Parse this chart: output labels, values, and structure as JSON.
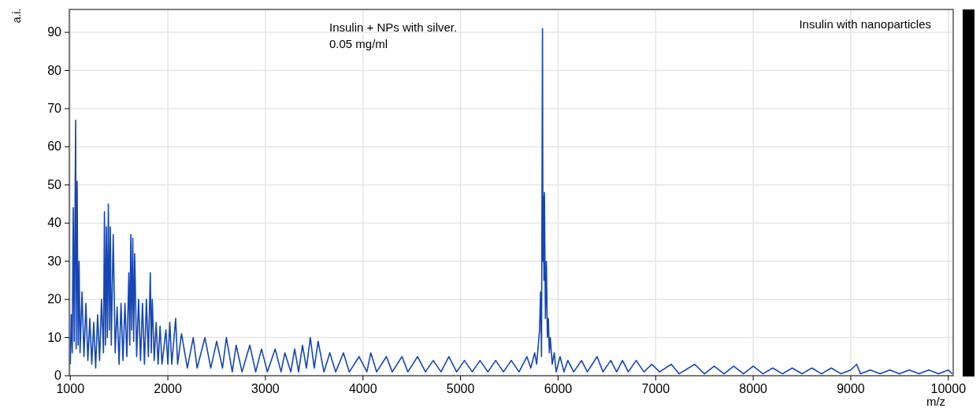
{
  "chart_data": {
    "type": "line",
    "xlabel": "m/z",
    "ylabel": "a.i.",
    "annotations": [
      "Insulin + NPs with silver.\n0.05 mg/ml",
      "Insulin with nanoparticles"
    ],
    "xlim": [
      990,
      10050
    ],
    "xticks": [
      1000,
      2000,
      3000,
      4000,
      5000,
      6000,
      7000,
      8000,
      9000,
      10000
    ],
    "ylim": [
      0,
      96
    ],
    "yticks": [
      0,
      10,
      20,
      30,
      40,
      50,
      60,
      70,
      80,
      90
    ],
    "grid": true,
    "series": [
      {
        "color": "#1446b4",
        "x": [
          1000,
          1010,
          1020,
          1030,
          1040,
          1050,
          1055,
          1060,
          1070,
          1080,
          1090,
          1100,
          1120,
          1140,
          1160,
          1180,
          1200,
          1220,
          1240,
          1260,
          1280,
          1300,
          1320,
          1340,
          1350,
          1360,
          1370,
          1380,
          1390,
          1400,
          1410,
          1420,
          1440,
          1460,
          1480,
          1500,
          1520,
          1540,
          1560,
          1580,
          1600,
          1610,
          1620,
          1630,
          1640,
          1650,
          1660,
          1680,
          1700,
          1720,
          1740,
          1760,
          1780,
          1800,
          1820,
          1830,
          1840,
          1860,
          1880,
          1900,
          1920,
          1940,
          1980,
          2000,
          2020,
          2040,
          2080,
          2100,
          2140,
          2200,
          2260,
          2300,
          2380,
          2440,
          2500,
          2560,
          2600,
          2660,
          2700,
          2760,
          2840,
          2900,
          2960,
          3020,
          3100,
          3160,
          3200,
          3260,
          3300,
          3340,
          3380,
          3420,
          3460,
          3500,
          3540,
          3600,
          3660,
          3720,
          3800,
          3860,
          3960,
          4040,
          4080,
          4140,
          4240,
          4300,
          4400,
          4460,
          4560,
          4640,
          4720,
          4800,
          4880,
          4960,
          5040,
          5120,
          5200,
          5280,
          5360,
          5440,
          5520,
          5600,
          5680,
          5720,
          5760,
          5780,
          5800,
          5810,
          5820,
          5830,
          5840,
          5845,
          5850,
          5855,
          5860,
          5870,
          5880,
          5890,
          5900,
          5910,
          5920,
          5940,
          5960,
          5980,
          6020,
          6060,
          6100,
          6160,
          6240,
          6300,
          6400,
          6460,
          6540,
          6600,
          6660,
          6720,
          6800,
          6880,
          6960,
          7040,
          7160,
          7240,
          7400,
          7500,
          7600,
          7700,
          7800,
          7900,
          8000,
          8100,
          8200,
          8300,
          8400,
          8500,
          8600,
          8700,
          8800,
          8900,
          9000,
          9060,
          9100,
          9200,
          9300,
          9400,
          9500,
          9600,
          9700,
          9800,
          9900,
          10000,
          10040
        ],
        "values": [
          3,
          16,
          6,
          44,
          9,
          49,
          67,
          7,
          51,
          8,
          30,
          6,
          22,
          5,
          19,
          4,
          15,
          3,
          14,
          2,
          16,
          4,
          20,
          6,
          43,
          8,
          39,
          10,
          45,
          12,
          39,
          8,
          37,
          6,
          18,
          3,
          19,
          4,
          19,
          5,
          27,
          8,
          37,
          12,
          36,
          9,
          32,
          5,
          20,
          4,
          19,
          3,
          20,
          5,
          27,
          6,
          20,
          4,
          14,
          3,
          13,
          3,
          12,
          3,
          14,
          3,
          15,
          3,
          11,
          2,
          10,
          2,
          10,
          2,
          9,
          2,
          10,
          1,
          8,
          1,
          8,
          1,
          7,
          1,
          7,
          1,
          6,
          1,
          7,
          1,
          8,
          2,
          10,
          2,
          9,
          1,
          6,
          1,
          6,
          1,
          5,
          1,
          6,
          1,
          5,
          1,
          5,
          1,
          5,
          1,
          4,
          1,
          5,
          1,
          4,
          1,
          4,
          1,
          4,
          1,
          4,
          1,
          5,
          2,
          6,
          3,
          9,
          12,
          22,
          5,
          91,
          30,
          47,
          25,
          48,
          15,
          30,
          10,
          15,
          6,
          10,
          3,
          6,
          1,
          5,
          1,
          4,
          1,
          4,
          1,
          5,
          1,
          4,
          1,
          4,
          1,
          4,
          1,
          3,
          1,
          3,
          0.5,
          3,
          0.5,
          2.5,
          0.5,
          2.5,
          0.5,
          2.5,
          0.5,
          2,
          0.5,
          2,
          0.5,
          2,
          0.5,
          2,
          0.5,
          1.5,
          3,
          0.5,
          1.5,
          0.5,
          1.5,
          0.5,
          1.5,
          0.5,
          1.5,
          0.5,
          1.5,
          0.5
        ]
      }
    ]
  }
}
